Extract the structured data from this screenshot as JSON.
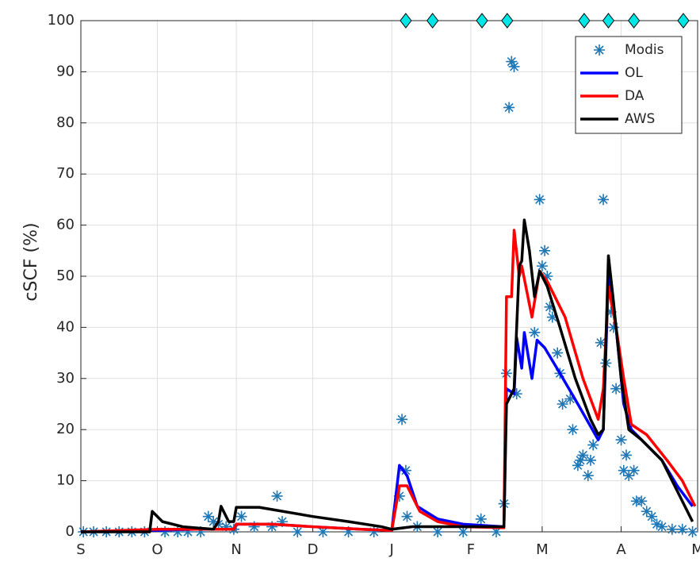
{
  "chart_data": {
    "type": "line",
    "ylabel": "cSCF (%)",
    "xlim": [
      0,
      242
    ],
    "xticks": [
      {
        "value": 0,
        "label": "S"
      },
      {
        "value": 30,
        "label": "O"
      },
      {
        "value": 61,
        "label": "N"
      },
      {
        "value": 91,
        "label": "D"
      },
      {
        "value": 122,
        "label": "J"
      },
      {
        "value": 153,
        "label": "F"
      },
      {
        "value": 181,
        "label": "M"
      },
      {
        "value": 212,
        "label": "A"
      },
      {
        "value": 242,
        "label": "M"
      }
    ],
    "ylim": [
      0,
      100
    ],
    "yticks": [
      0,
      10,
      20,
      30,
      40,
      50,
      60,
      70,
      80,
      90,
      100
    ],
    "grid": true,
    "legend": "upper right",
    "series": [
      {
        "name": "Modis",
        "kind": "scatter",
        "color": "#1f77b4",
        "x": [
          1,
          5,
          10,
          15,
          20,
          25,
          33,
          38,
          42,
          47,
          50,
          52,
          54,
          57,
          60,
          63,
          68,
          75,
          77,
          79,
          85,
          95,
          105,
          115,
          125,
          126,
          127.5,
          128,
          132,
          140,
          150,
          157,
          163,
          166,
          167,
          168,
          169,
          170,
          171,
          178,
          180,
          181,
          182,
          183,
          184,
          185,
          187,
          188,
          189,
          192,
          193,
          195,
          196,
          197,
          199,
          200,
          201,
          204,
          205,
          206,
          208,
          209,
          210,
          212,
          213,
          214,
          215,
          217,
          218,
          220,
          222,
          224,
          226,
          228,
          232,
          236,
          240
        ],
        "values": [
          0,
          0,
          0,
          0,
          0,
          0,
          0,
          0,
          0,
          0,
          3,
          2,
          1.5,
          1,
          0.5,
          3,
          1,
          1,
          7,
          2,
          0,
          0,
          0,
          0,
          7,
          22,
          12,
          3,
          1,
          0,
          0,
          2.5,
          0,
          5.5,
          31,
          83,
          92,
          91,
          27,
          39,
          65,
          52,
          55,
          50,
          44,
          42,
          35,
          31,
          25,
          26,
          20,
          13,
          14,
          15,
          11,
          14,
          17,
          37,
          65,
          33,
          43,
          40,
          28,
          18,
          12,
          15,
          11,
          12,
          6,
          6,
          4,
          3,
          1.5,
          1,
          0.5,
          0.5,
          0
        ]
      },
      {
        "name": "OL",
        "kind": "line",
        "color": "#0000ff",
        "x": [
          0,
          30,
          45,
          60,
          61,
          75,
          91,
          110,
          121,
          122,
          125,
          128,
          132,
          140,
          150,
          166,
          167,
          170,
          171,
          173,
          174,
          177,
          179,
          182,
          188,
          195,
          203,
          205,
          207,
          210,
          213,
          216,
          220,
          228,
          234,
          240
        ],
        "values": [
          0,
          0.3,
          0.5,
          0.5,
          1.5,
          1.5,
          1,
          0.5,
          0.3,
          0.3,
          13,
          11,
          5,
          2.5,
          1.5,
          1,
          28,
          27,
          38,
          32,
          39,
          30,
          37.5,
          36,
          31,
          25,
          18,
          20,
          50,
          40,
          25,
          20,
          18,
          14,
          9,
          5
        ]
      },
      {
        "name": "DA",
        "kind": "line",
        "color": "#ff0000",
        "x": [
          0,
          30,
          45,
          60,
          61,
          75,
          91,
          110,
          121,
          122,
          125,
          128,
          133,
          140,
          150,
          166,
          167,
          169,
          170,
          172,
          173,
          177,
          180,
          183,
          190,
          197,
          203,
          205,
          207,
          210,
          213,
          216,
          222,
          230,
          236,
          241
        ],
        "values": [
          0,
          0.5,
          0.5,
          0.5,
          1.5,
          1.5,
          1,
          0.5,
          0.3,
          0.3,
          9,
          9,
          4,
          2,
          1,
          0.8,
          46,
          46,
          59,
          50,
          52,
          42,
          51,
          49,
          42,
          30,
          22,
          28,
          48,
          40,
          30,
          21,
          19,
          14,
          10,
          5
        ]
      },
      {
        "name": "AWS",
        "kind": "line",
        "color": "#000000",
        "x": [
          0,
          27,
          28,
          32,
          40,
          52,
          54,
          55,
          58,
          60,
          61,
          70,
          91,
          105,
          118,
          122,
          130,
          150,
          166,
          167,
          170,
          172,
          173,
          174,
          176,
          178,
          180,
          183,
          188,
          194,
          200,
          203,
          205,
          207,
          209,
          212,
          215,
          220,
          228,
          234,
          240
        ],
        "values": [
          0,
          0,
          4,
          2,
          1,
          0.5,
          2,
          5,
          2,
          2,
          4.8,
          4.8,
          3,
          2,
          1,
          0.5,
          1,
          1,
          1,
          25,
          28,
          52,
          53,
          61,
          55,
          46,
          51,
          48,
          40,
          30,
          22,
          19,
          20,
          54,
          45,
          30,
          20,
          18,
          14,
          8,
          2
        ]
      }
    ],
    "events": {
      "color": "#00e5e5",
      "x": [
        127.5,
        138,
        157.4,
        167.3,
        197.5,
        207,
        217,
        236.4
      ],
      "values": [
        100,
        100,
        100,
        100,
        100,
        100,
        100,
        100
      ]
    }
  }
}
